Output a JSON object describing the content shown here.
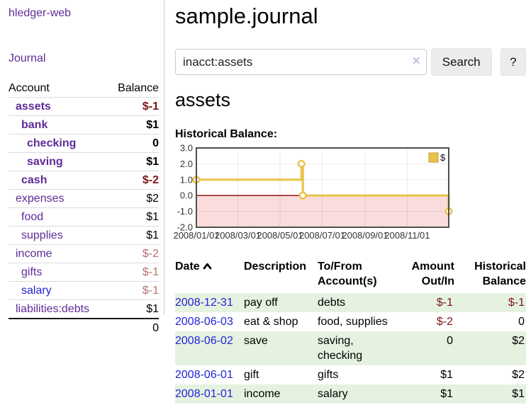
{
  "colors": {
    "link-purple": "#5e2b97",
    "link-blue": "#2424d8",
    "neg-strong": "#7e1616",
    "neg-muted": "#b96f6f",
    "row-green": "#e6f2e0",
    "chart-gold": "#e9c34c",
    "chart-gold-dark": "#bf9b30",
    "chart-neg-bg": "#fadcdc",
    "chart-zero": "#8b0000",
    "divider": "#cccccc"
  },
  "sidebar": {
    "brand": "hledger-web",
    "journal_link": "Journal",
    "account_header": "Account",
    "balance_header": "Balance",
    "accounts": [
      {
        "name": "assets",
        "depth": 0,
        "balance": "$-1",
        "bold": true,
        "bal_class": "neg-strong"
      },
      {
        "name": "bank",
        "depth": 1,
        "balance": "$1",
        "bold": true,
        "bal_class": ""
      },
      {
        "name": "checking",
        "depth": 2,
        "balance": "0",
        "bold": true,
        "bal_class": ""
      },
      {
        "name": "saving",
        "depth": 2,
        "balance": "$1",
        "bold": true,
        "bal_class": ""
      },
      {
        "name": "cash",
        "depth": 1,
        "balance": "$-2",
        "bold": true,
        "bal_class": "neg-strong"
      },
      {
        "name": "expenses",
        "depth": 0,
        "balance": "$2",
        "bold": false,
        "bal_class": ""
      },
      {
        "name": "food",
        "depth": 1,
        "balance": "$1",
        "bold": false,
        "bal_class": ""
      },
      {
        "name": "supplies",
        "depth": 1,
        "balance": "$1",
        "bold": false,
        "bal_class": ""
      },
      {
        "name": "income",
        "depth": 0,
        "balance": "$-2",
        "bold": false,
        "bal_class": "neg-muted"
      },
      {
        "name": "gifts",
        "depth": 1,
        "balance": "$-1",
        "bold": false,
        "bal_class": "neg-muted"
      },
      {
        "name": "salary",
        "depth": 1,
        "balance": "$-1",
        "bold": false,
        "bal_class": "neg-muted",
        "blue": true
      },
      {
        "name": "liabilities:debts",
        "depth": 0,
        "balance": "$1",
        "bold": false,
        "bal_class": ""
      }
    ],
    "total": "0"
  },
  "main": {
    "title": "sample.journal",
    "search": {
      "value": "inacct:assets",
      "clear_icon": "×",
      "search_button": "Search",
      "help_button": "?"
    },
    "account_title": "assets",
    "chart_heading": "Historical Balance:"
  },
  "chart_data": {
    "type": "line",
    "step": true,
    "title": "Historical Balance",
    "series": [
      {
        "name": "$",
        "points": [
          [
            "2008-01-01",
            1
          ],
          [
            "2008-06-01",
            2
          ],
          [
            "2008-06-03",
            0
          ],
          [
            "2008-12-31",
            -1
          ]
        ]
      }
    ],
    "x_start": "2008-01-01",
    "x_end": "2008-12-31",
    "x_tick_labels": [
      "2008/01/01",
      "2008/03/01",
      "2008/05/01",
      "2008/07/01",
      "2008/09/01",
      "2008/11/01"
    ],
    "y_ticks": [
      "3.0",
      "2.0",
      "1.0",
      "0.0",
      "-1.0",
      "-2.0"
    ],
    "ylim": [
      -2,
      3
    ],
    "grid": true,
    "negative_region_shaded": true,
    "legend": {
      "label": "$",
      "position": "top-right"
    }
  },
  "register": {
    "columns": [
      "Date",
      "Description",
      "To/From Account(s)",
      "Amount Out/In",
      "Historical Balance"
    ],
    "sort_icon": "chevron-up",
    "rows": [
      {
        "date": "2008-12-31",
        "description": "pay off",
        "accounts": "debts",
        "amount": "$-1",
        "balance": "$-1",
        "amount_class": "neg",
        "balance_class": "neg"
      },
      {
        "date": "2008-06-03",
        "description": "eat & shop",
        "accounts": "food, supplies",
        "amount": "$-2",
        "balance": "0",
        "amount_class": "neg",
        "balance_class": ""
      },
      {
        "date": "2008-06-02",
        "description": "save",
        "accounts": "saving, checking",
        "amount": "0",
        "balance": "$2",
        "amount_class": "",
        "balance_class": ""
      },
      {
        "date": "2008-06-01",
        "description": "gift",
        "accounts": "gifts",
        "amount": "$1",
        "balance": "$2",
        "amount_class": "",
        "balance_class": ""
      },
      {
        "date": "2008-01-01",
        "description": "income",
        "accounts": "salary",
        "amount": "$1",
        "balance": "$1",
        "amount_class": "",
        "balance_class": ""
      }
    ]
  }
}
